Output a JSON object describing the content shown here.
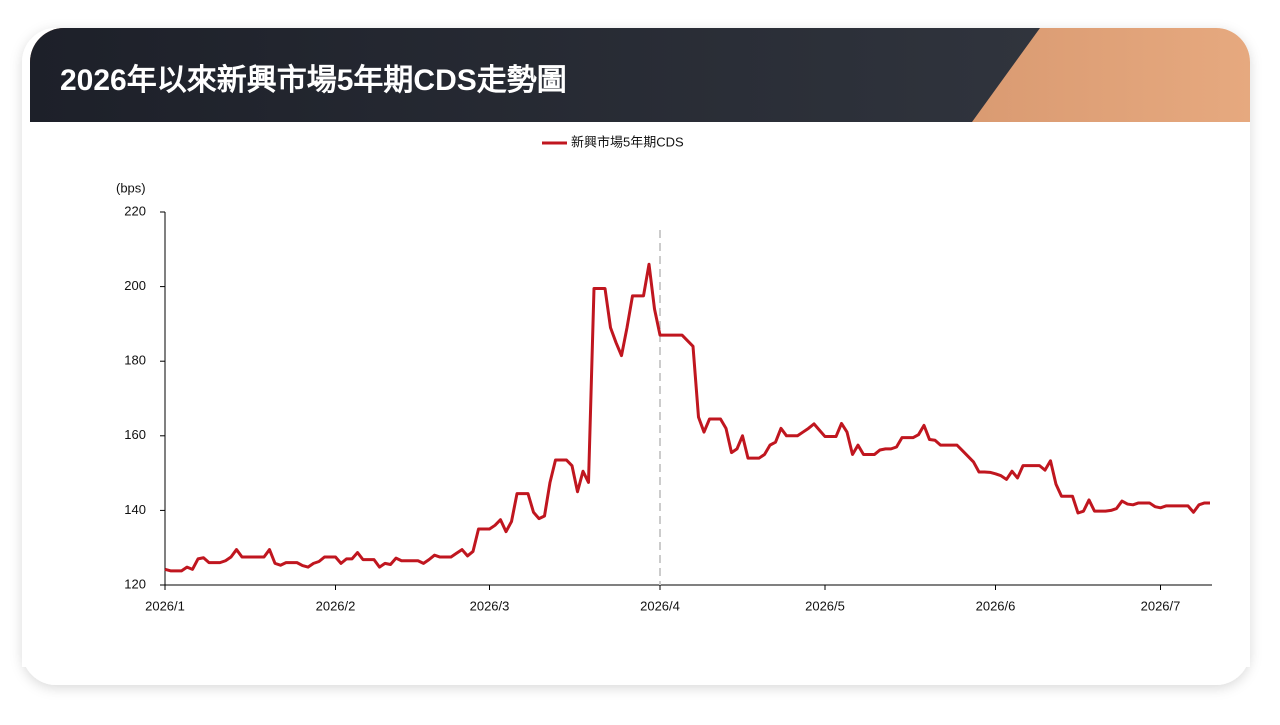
{
  "chart_data": {
    "type": "line",
    "title": "2026年以來新興市場5年期CDS走勢圖",
    "y_label": "(bps)",
    "ylim": [
      120,
      220
    ],
    "yticks": [
      120,
      140,
      160,
      180,
      200,
      220
    ],
    "grid": false,
    "legend": "top",
    "categories": [
      "2026/1",
      null,
      null,
      null,
      null,
      null,
      null,
      null,
      null,
      null,
      null,
      null,
      null,
      null,
      null,
      null,
      null,
      null,
      null,
      null,
      null,
      null,
      null,
      null,
      null,
      null,
      null,
      null,
      null,
      null,
      null,
      "2026/2",
      null,
      null,
      null,
      null,
      null,
      null,
      null,
      null,
      null,
      null,
      null,
      null,
      null,
      null,
      null,
      null,
      null,
      null,
      null,
      null,
      null,
      null,
      null,
      null,
      null,
      null,
      null,
      "2026/3",
      null,
      null,
      null,
      null,
      null,
      null,
      null,
      null,
      null,
      null,
      null,
      null,
      null,
      null,
      null,
      null,
      null,
      null,
      null,
      null,
      null,
      null,
      null,
      null,
      null,
      null,
      null,
      null,
      null,
      null,
      "2026/4",
      null,
      null,
      null,
      null,
      null,
      null,
      null,
      null,
      null,
      null,
      null,
      null,
      null,
      null,
      null,
      null,
      null,
      null,
      null,
      null,
      null,
      null,
      null,
      null,
      null,
      null,
      null,
      null,
      null,
      "2026/5",
      null,
      null,
      null,
      null,
      null,
      null,
      null,
      null,
      null,
      null,
      null,
      null,
      null,
      null,
      null,
      null,
      null,
      null,
      null,
      null,
      null,
      null,
      null,
      null,
      null,
      null,
      null,
      null,
      null,
      null,
      "2026/6",
      null,
      null,
      null,
      null,
      null,
      null,
      null,
      null,
      null,
      null,
      null,
      null,
      null,
      null,
      null,
      null,
      null,
      null,
      null,
      null,
      null,
      null,
      null,
      null,
      null,
      null,
      null,
      null,
      null,
      "2026/7",
      null,
      null,
      null,
      null,
      null,
      null,
      null,
      null,
      null
    ],
    "series": [
      {
        "name": "新興市場5年期CDS",
        "color": "#c0161f",
        "values": [
          124.2,
          123.8,
          123.8,
          123.8,
          124.8,
          124.2,
          127,
          127.3,
          126,
          126,
          126,
          126.5,
          127.5,
          129.5,
          127.5,
          127.5,
          127.5,
          127.5,
          127.5,
          129.5,
          125.8,
          125.3,
          126,
          126,
          126,
          125.2,
          124.8,
          125.8,
          126.3,
          127.5,
          127.5,
          127.5,
          125.8,
          127,
          127,
          128.7,
          126.8,
          126.8,
          126.8,
          124.8,
          125.8,
          125.5,
          127.2,
          126.5,
          126.5,
          126.5,
          126.5,
          125.8,
          126.8,
          128,
          127.5,
          127.5,
          127.5,
          128.5,
          129.5,
          127.8,
          129,
          135,
          135,
          135,
          136,
          137.5,
          134.3,
          137,
          144.5,
          144.5,
          144.5,
          139.5,
          137.8,
          138.5,
          147.5,
          153.5,
          153.5,
          153.5,
          152,
          145,
          150.5,
          147.5,
          199.5,
          199.5,
          199.5,
          189,
          185,
          181.5,
          189,
          197.5,
          197.5,
          197.5,
          206,
          194,
          187,
          187,
          187,
          187,
          187,
          185.5,
          184,
          165,
          161,
          164.5,
          164.5,
          164.5,
          162,
          155.5,
          156.5,
          160,
          154,
          154,
          154,
          155,
          157.5,
          158.3,
          162,
          160,
          160,
          160,
          161,
          162,
          163.2,
          161.5,
          159.8,
          159.8,
          159.8,
          163.3,
          161,
          155,
          157.5,
          155,
          155,
          155,
          156.2,
          156.5,
          156.5,
          157,
          159.5,
          159.5,
          159.5,
          160.3,
          162.8,
          159,
          158.8,
          157.5,
          157.5,
          157.5,
          157.5,
          156,
          154.5,
          153,
          150.3,
          150.3,
          150.2,
          149.8,
          149.3,
          148.3,
          150.5,
          148.7,
          152,
          152,
          152,
          152,
          150.8,
          153.3,
          147,
          143.8,
          143.8,
          143.8,
          139.3,
          139.8,
          142.8,
          139.8,
          139.8,
          139.8,
          140,
          140.5,
          142.5,
          141.7,
          141.5,
          142,
          142,
          142,
          141,
          140.7,
          141.2,
          141.2,
          141.2,
          141.2,
          141.2,
          139.5,
          141.5,
          142,
          142
        ]
      }
    ]
  }
}
